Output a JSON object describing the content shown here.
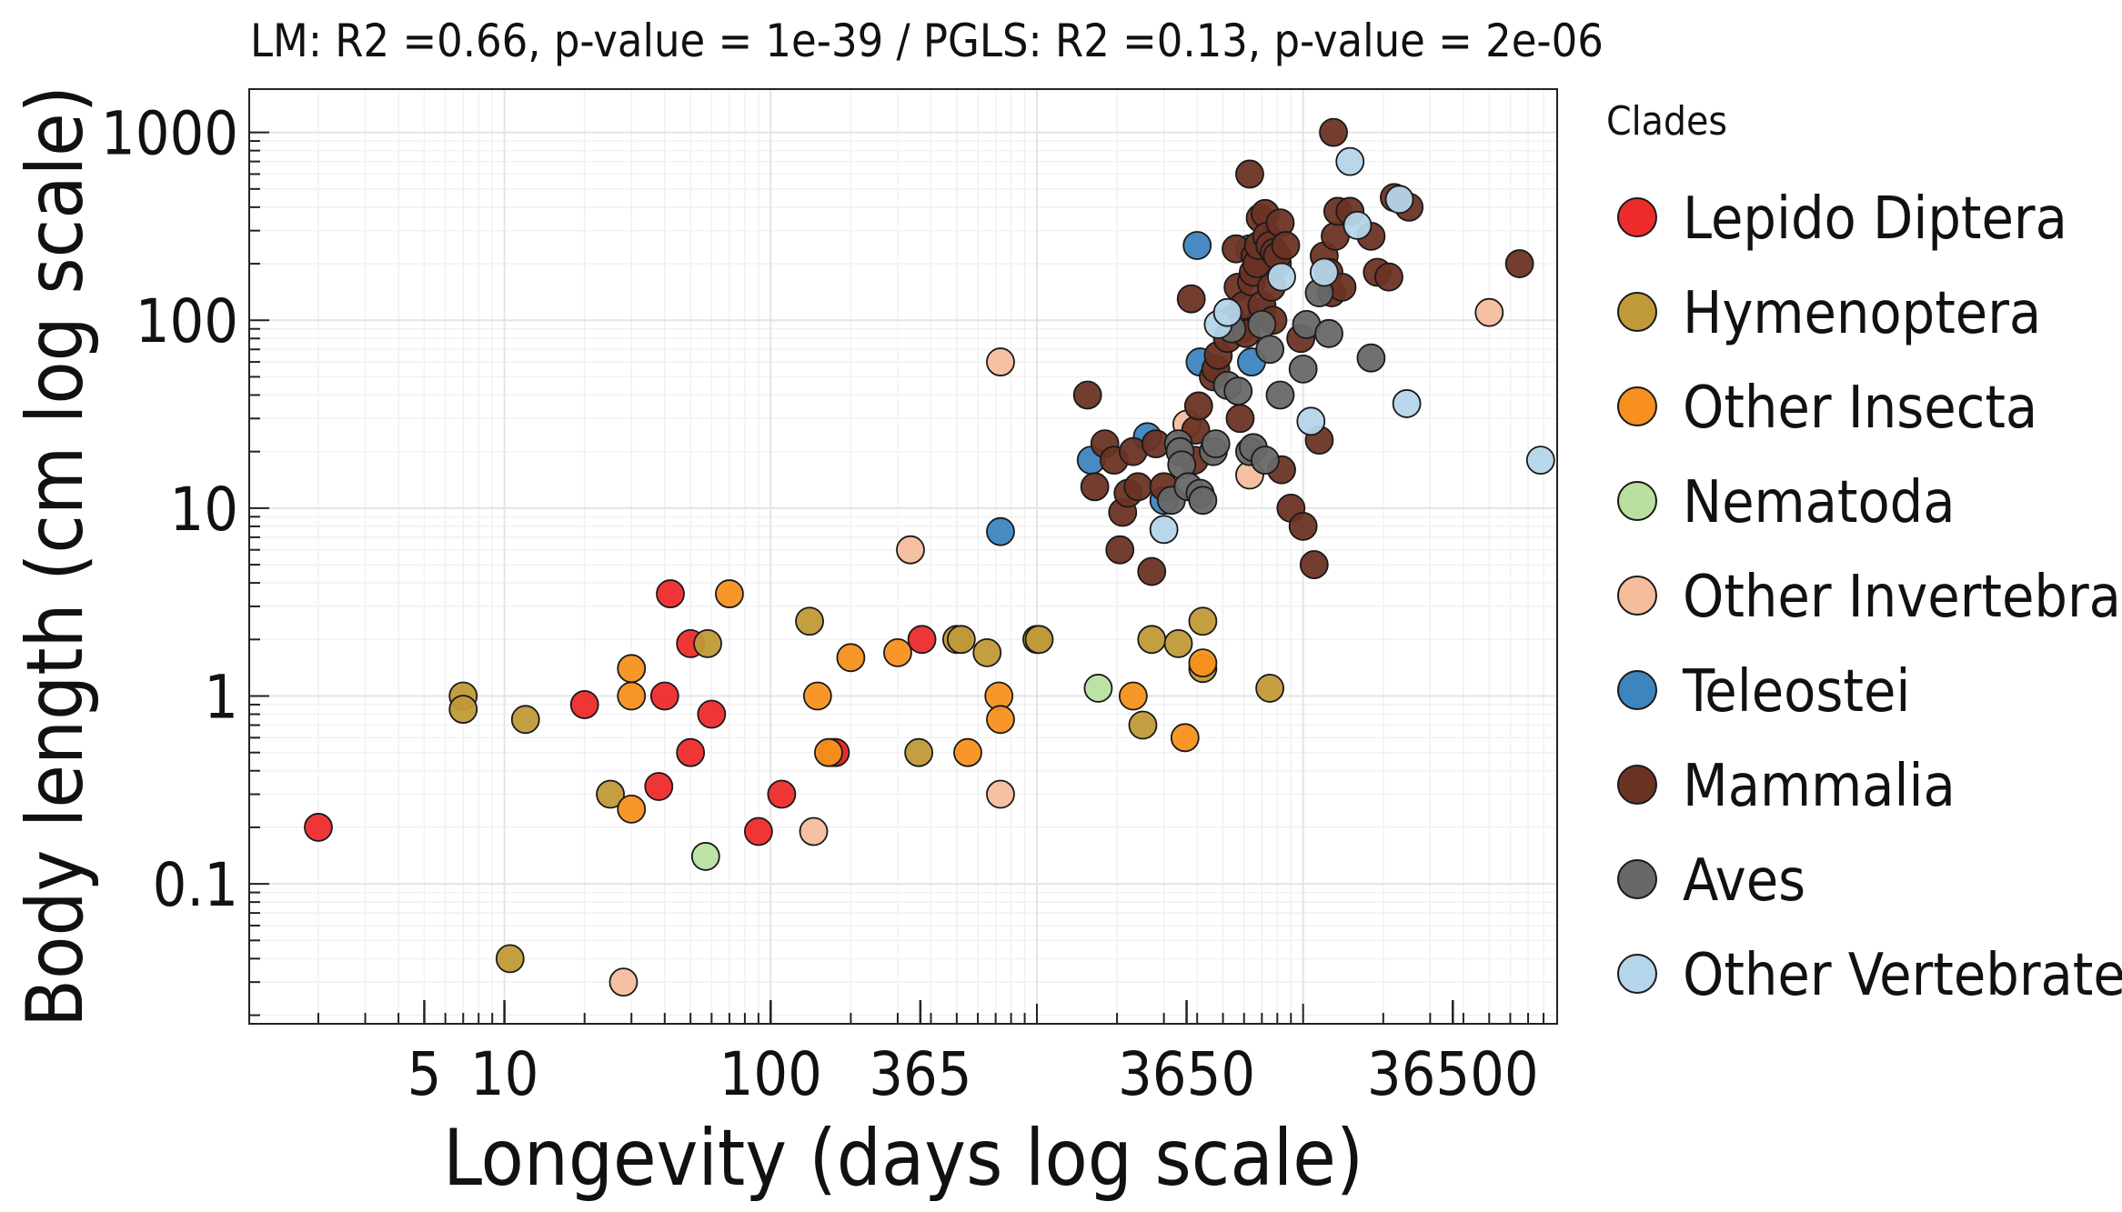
{
  "chart_data": {
    "type": "scatter",
    "title": "LM: R2 =0.66, p-value = 1e-39 / PGLS: R2 =0.13, p-value = 2e-06",
    "xlabel": "Longevity (days log scale)",
    "ylabel": "Body length (cm log scale)",
    "x_scale": "log",
    "y_scale": "log",
    "xlim": [
      1.1,
      90000
    ],
    "ylim": [
      0.018,
      1700
    ],
    "x_ticks": [
      5,
      10,
      100,
      365,
      3650,
      36500
    ],
    "x_tick_labels": [
      "5",
      "10",
      "100",
      "365",
      "3650",
      "36500"
    ],
    "y_ticks": [
      0.1,
      1,
      10,
      100,
      1000
    ],
    "y_tick_labels": [
      "0.1",
      "1",
      "10",
      "100",
      "1000"
    ],
    "grid": true,
    "legend": {
      "title": "Clades",
      "placement": "right"
    },
    "series": [
      {
        "name": "Lepido Diptera",
        "color": "#ee2b2b",
        "points": [
          [
            2,
            0.2
          ],
          [
            20,
            0.9
          ],
          [
            38,
            0.33
          ],
          [
            40,
            1.0
          ],
          [
            42,
            3.5
          ],
          [
            50,
            1.9
          ],
          [
            50,
            0.5
          ],
          [
            60,
            0.8
          ],
          [
            90,
            0.19
          ],
          [
            110,
            0.3
          ],
          [
            170,
            0.5
          ],
          [
            175,
            0.5
          ],
          [
            370,
            2.0
          ]
        ]
      },
      {
        "name": "Hymenoptera",
        "color": "#c09a38",
        "points": [
          [
            7,
            1.0
          ],
          [
            7,
            0.85
          ],
          [
            10.5,
            0.04
          ],
          [
            12,
            0.75
          ],
          [
            25,
            0.3
          ],
          [
            58,
            1.9
          ],
          [
            140,
            2.5
          ],
          [
            360,
            0.5
          ],
          [
            500,
            2.0
          ],
          [
            520,
            2.0
          ],
          [
            650,
            1.7
          ],
          [
            1000,
            2.0
          ],
          [
            1020,
            2.0
          ],
          [
            2500,
            0.7
          ],
          [
            2700,
            2.0
          ],
          [
            3400,
            1.9
          ],
          [
            4200,
            2.5
          ],
          [
            4200,
            1.4
          ],
          [
            7500,
            1.1
          ]
        ]
      },
      {
        "name": "Other Insecta",
        "color": "#f7901e",
        "points": [
          [
            30,
            1.4
          ],
          [
            30,
            1.0
          ],
          [
            30,
            0.25
          ],
          [
            70,
            3.5
          ],
          [
            150,
            1.0
          ],
          [
            165,
            0.5
          ],
          [
            200,
            1.6
          ],
          [
            300,
            1.7
          ],
          [
            550,
            0.5
          ],
          [
            720,
            1.0
          ],
          [
            730,
            0.75
          ],
          [
            2300,
            1.0
          ],
          [
            3600,
            0.6
          ],
          [
            4200,
            1.5
          ]
        ]
      },
      {
        "name": "Nematoda",
        "color": "#b9e0a0",
        "points": [
          [
            57,
            0.14
          ],
          [
            1700,
            1.1
          ]
        ]
      },
      {
        "name": "Other Invertebrates",
        "color": "#f6bd9d",
        "points": [
          [
            28,
            0.03
          ],
          [
            145,
            0.19
          ],
          [
            335,
            6.0
          ],
          [
            730,
            60
          ],
          [
            730,
            0.3
          ],
          [
            3660,
            28
          ],
          [
            6300,
            15
          ],
          [
            50000,
            110
          ]
        ]
      },
      {
        "name": "Teleostei",
        "color": "#3d85bf",
        "points": [
          [
            730,
            7.5
          ],
          [
            1600,
            18
          ],
          [
            2600,
            24
          ],
          [
            3000,
            11
          ],
          [
            4000,
            250
          ],
          [
            4100,
            60
          ],
          [
            6300,
            240
          ],
          [
            6400,
            60
          ],
          [
            7000,
            110
          ],
          [
            8000,
            200
          ]
        ]
      },
      {
        "name": "Mammalia",
        "color": "#6b3324",
        "points": [
          [
            1550,
            40
          ],
          [
            1650,
            13
          ],
          [
            1800,
            22
          ],
          [
            1950,
            18
          ],
          [
            2050,
            6
          ],
          [
            2100,
            9.5
          ],
          [
            2200,
            12
          ],
          [
            2300,
            20
          ],
          [
            2400,
            13
          ],
          [
            2700,
            4.6
          ],
          [
            2800,
            22
          ],
          [
            3000,
            13
          ],
          [
            3800,
            130
          ],
          [
            3900,
            18
          ],
          [
            3950,
            26
          ],
          [
            4050,
            35
          ],
          [
            4600,
            50
          ],
          [
            4700,
            55
          ],
          [
            4800,
            65
          ],
          [
            5200,
            80
          ],
          [
            5400,
            100
          ],
          [
            5600,
            240
          ],
          [
            5700,
            150
          ],
          [
            5800,
            30
          ],
          [
            5900,
            90
          ],
          [
            6000,
            120
          ],
          [
            6100,
            85
          ],
          [
            6300,
            600
          ],
          [
            6400,
            160
          ],
          [
            6500,
            180
          ],
          [
            6600,
            220
          ],
          [
            6700,
            200
          ],
          [
            6800,
            250
          ],
          [
            6900,
            350
          ],
          [
            7000,
            120
          ],
          [
            7200,
            370
          ],
          [
            7300,
            280
          ],
          [
            7500,
            250
          ],
          [
            7600,
            150
          ],
          [
            7700,
            100
          ],
          [
            7800,
            230
          ],
          [
            8000,
            220
          ],
          [
            8200,
            330
          ],
          [
            8300,
            16
          ],
          [
            8600,
            250
          ],
          [
            9000,
            10
          ],
          [
            9800,
            80
          ],
          [
            10000,
            8
          ],
          [
            11000,
            5
          ],
          [
            11500,
            23
          ],
          [
            12000,
            220
          ],
          [
            12500,
            180
          ],
          [
            12800,
            140
          ],
          [
            13000,
            1000
          ],
          [
            13200,
            280
          ],
          [
            13500,
            380
          ],
          [
            14000,
            150
          ],
          [
            15000,
            380
          ],
          [
            18000,
            280
          ],
          [
            19000,
            180
          ],
          [
            21000,
            170
          ],
          [
            22000,
            450
          ],
          [
            25000,
            400
          ],
          [
            65000,
            200
          ]
        ]
      },
      {
        "name": "Aves",
        "color": "#686868",
        "points": [
          [
            3200,
            11
          ],
          [
            3400,
            22
          ],
          [
            3450,
            20
          ],
          [
            3500,
            17
          ],
          [
            3700,
            13
          ],
          [
            4100,
            12
          ],
          [
            4200,
            11
          ],
          [
            4600,
            20
          ],
          [
            4700,
            22
          ],
          [
            5200,
            45
          ],
          [
            5400,
            90
          ],
          [
            5700,
            42
          ],
          [
            6300,
            20
          ],
          [
            6500,
            21
          ],
          [
            7000,
            95
          ],
          [
            7200,
            18
          ],
          [
            7500,
            70
          ],
          [
            8200,
            40
          ],
          [
            10000,
            55
          ],
          [
            10300,
            95
          ],
          [
            11500,
            140
          ],
          [
            12500,
            85
          ],
          [
            18000,
            63
          ]
        ]
      },
      {
        "name": "Other Vertebrates",
        "color": "#b5d5ea",
        "points": [
          [
            3000,
            7.7
          ],
          [
            4800,
            95
          ],
          [
            5200,
            110
          ],
          [
            8300,
            170
          ],
          [
            10700,
            29
          ],
          [
            12000,
            180
          ],
          [
            15000,
            700
          ],
          [
            16000,
            320
          ],
          [
            23000,
            440
          ],
          [
            24500,
            36
          ],
          [
            78000,
            18
          ]
        ]
      }
    ]
  }
}
